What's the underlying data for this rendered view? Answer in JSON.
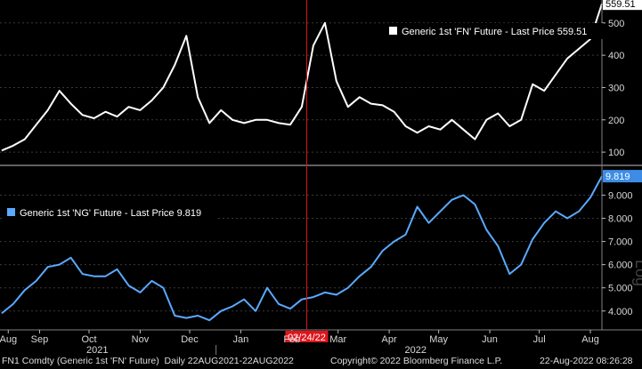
{
  "colors": {
    "background": "#000000",
    "fn_line": "#ffffff",
    "ng_line": "#5aa9ff",
    "event_line": "#e0141b",
    "grid": "#3a3a3a",
    "axis_text": "#d8d8d8",
    "last_label_bg": "#ffffff",
    "ng_last_bg": "#3d8de6"
  },
  "chart_data": [
    {
      "type": "line",
      "panel": "top",
      "series": [
        {
          "name": "Generic 1st 'FN' Future - Last Price 559.51",
          "x": [
            "2021-08-23",
            "2021-08-30",
            "2021-09-06",
            "2021-09-13",
            "2021-09-20",
            "2021-09-27",
            "2021-10-04",
            "2021-10-11",
            "2021-10-18",
            "2021-10-25",
            "2021-11-01",
            "2021-11-08",
            "2021-11-15",
            "2021-11-22",
            "2021-11-29",
            "2021-12-06",
            "2021-12-13",
            "2021-12-20",
            "2021-12-27",
            "2022-01-03",
            "2022-01-10",
            "2022-01-17",
            "2022-01-24",
            "2022-01-31",
            "2022-02-07",
            "2022-02-14",
            "2022-02-21",
            "2022-02-28",
            "2022-03-07",
            "2022-03-14",
            "2022-03-21",
            "2022-03-28",
            "2022-04-04",
            "2022-04-11",
            "2022-04-18",
            "2022-04-25",
            "2022-05-02",
            "2022-05-09",
            "2022-05-16",
            "2022-05-23",
            "2022-05-30",
            "2022-06-06",
            "2022-06-13",
            "2022-06-20",
            "2022-06-27",
            "2022-07-04",
            "2022-07-11",
            "2022-07-18",
            "2022-07-25",
            "2022-08-01",
            "2022-08-08",
            "2022-08-15",
            "2022-08-22"
          ],
          "values": [
            105,
            120,
            140,
            185,
            230,
            290,
            250,
            215,
            205,
            225,
            210,
            240,
            230,
            260,
            300,
            370,
            460,
            270,
            190,
            230,
            200,
            190,
            200,
            200,
            190,
            185,
            240,
            430,
            500,
            320,
            240,
            270,
            250,
            245,
            225,
            180,
            160,
            180,
            170,
            200,
            170,
            140,
            200,
            220,
            180,
            200,
            310,
            290,
            340,
            390,
            420,
            450,
            559.51
          ]
        }
      ],
      "y_ticks": [
        100,
        200,
        300,
        400,
        500
      ],
      "ylim": [
        70,
        560
      ],
      "last_value_label": "559.51",
      "legend": "Generic 1st 'FN' Future - Last Price 559.51"
    },
    {
      "type": "line",
      "panel": "bottom",
      "series": [
        {
          "name": "Generic 1st 'NG' Future - Last Price 9.819",
          "x": [
            "2021-08-23",
            "2021-08-30",
            "2021-09-06",
            "2021-09-13",
            "2021-09-20",
            "2021-09-27",
            "2021-10-04",
            "2021-10-11",
            "2021-10-18",
            "2021-10-25",
            "2021-11-01",
            "2021-11-08",
            "2021-11-15",
            "2021-11-22",
            "2021-11-29",
            "2021-12-06",
            "2021-12-13",
            "2021-12-20",
            "2021-12-27",
            "2022-01-03",
            "2022-01-10",
            "2022-01-17",
            "2022-01-24",
            "2022-01-31",
            "2022-02-07",
            "2022-02-14",
            "2022-02-21",
            "2022-02-28",
            "2022-03-07",
            "2022-03-14",
            "2022-03-21",
            "2022-03-28",
            "2022-04-04",
            "2022-04-11",
            "2022-04-18",
            "2022-04-25",
            "2022-05-02",
            "2022-05-09",
            "2022-05-16",
            "2022-05-23",
            "2022-05-30",
            "2022-06-06",
            "2022-06-13",
            "2022-06-20",
            "2022-06-27",
            "2022-07-04",
            "2022-07-11",
            "2022-07-18",
            "2022-07-25",
            "2022-08-01",
            "2022-08-08",
            "2022-08-15",
            "2022-08-22"
          ],
          "values": [
            3.9,
            4.3,
            4.9,
            5.3,
            5.9,
            6.0,
            6.3,
            5.6,
            5.5,
            5.5,
            5.8,
            5.1,
            4.8,
            5.3,
            5.0,
            3.8,
            3.7,
            3.8,
            3.6,
            4.0,
            4.2,
            4.5,
            4.0,
            5.0,
            4.3,
            4.1,
            4.5,
            4.6,
            4.8,
            4.7,
            5.0,
            5.5,
            5.9,
            6.6,
            7.0,
            7.3,
            8.5,
            7.8,
            8.3,
            8.8,
            9.0,
            8.6,
            7.5,
            6.8,
            5.6,
            6.0,
            7.1,
            7.8,
            8.3,
            8.0,
            8.3,
            8.9,
            9.819
          ]
        }
      ],
      "y_ticks": [
        4.0,
        5.0,
        6.0,
        7.0,
        8.0,
        9.0
      ],
      "y_tick_labels": [
        "4.000",
        "5.000",
        "6.000",
        "7.000",
        "8.000",
        "9.000"
      ],
      "ylim": [
        3.3,
        9.9
      ],
      "last_value_label": "9.819",
      "legend": "Generic 1st 'NG' Future - Last Price 9.819"
    }
  ],
  "x_axis": {
    "ticks": [
      {
        "label": "Aug",
        "date": "2021-08-27"
      },
      {
        "label": "Sep",
        "date": "2021-09-15"
      },
      {
        "label": "Oct",
        "date": "2021-10-15"
      },
      {
        "label": "Nov",
        "date": "2021-11-15"
      },
      {
        "label": "Dec",
        "date": "2021-12-15"
      },
      {
        "label": "Jan",
        "date": "2022-01-15"
      },
      {
        "label": "Feb",
        "date": "2022-02-15"
      },
      {
        "label": "Mar",
        "date": "2022-03-15"
      },
      {
        "label": "Apr",
        "date": "2022-04-15"
      },
      {
        "label": "May",
        "date": "2022-05-15"
      },
      {
        "label": "Jun",
        "date": "2022-06-15"
      },
      {
        "label": "Jul",
        "date": "2022-07-15"
      },
      {
        "label": "Aug",
        "date": "2022-08-15"
      }
    ],
    "years": [
      {
        "label": "2021",
        "date": "2021-10-20"
      },
      {
        "label": "2022",
        "date": "2022-05-01"
      }
    ],
    "event_date": "2022-02-24",
    "event_label": "02/24/22",
    "start_date": "2021-08-22",
    "end_date": "2022-08-22"
  },
  "footer": {
    "left": "FN1 Comdty (Generic 1st 'FN' Future)  Daily 22AUG2021-22AUG2022",
    "center": "Copyright© 2022 Bloomberg Finance L.P.",
    "right": "22-Aug-2022 08:26:28"
  },
  "watermark": "Log"
}
